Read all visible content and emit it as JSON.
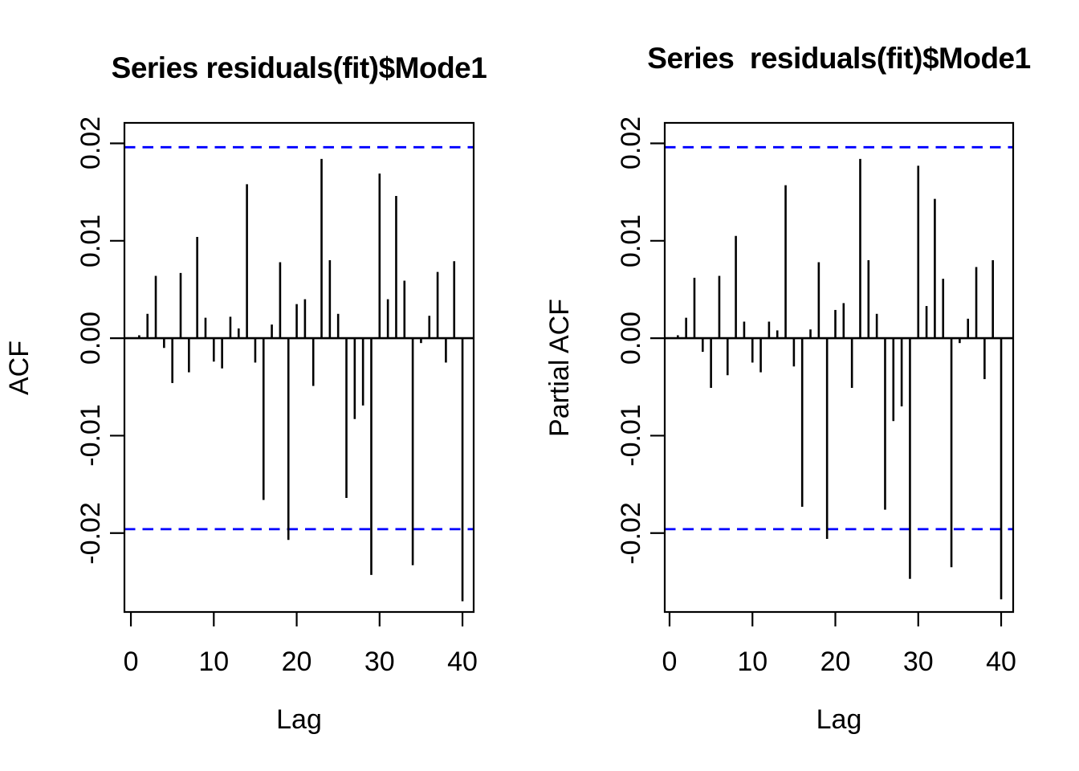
{
  "figure": {
    "background": "#ffffff",
    "text_color": "#000000"
  },
  "chart_data": [
    {
      "type": "bar",
      "subtype": "acf-lollipop",
      "title": "Series residuals(fit)$Mode1",
      "xlabel": "Lag",
      "ylabel": "ACF",
      "x_ticks": [
        0,
        10,
        20,
        30,
        40
      ],
      "x_tick_labels": [
        "0",
        "10",
        "20",
        "30",
        "40"
      ],
      "y_ticks": [
        0.02,
        0.01,
        0.0,
        -0.01,
        -0.02
      ],
      "y_tick_labels": [
        "0.02",
        "0.01",
        "0.00",
        "-0.01",
        "-0.02"
      ],
      "xlim": [
        -0.78,
        41.35
      ],
      "ylim": [
        -0.0281,
        0.0221
      ],
      "confidence_bound": 0.0196,
      "confidence_style": "dashed",
      "confidence_color": "#0000ff",
      "bar_color": "#000000",
      "grid": false,
      "lag_start": 1,
      "lags": [
        1,
        2,
        3,
        4,
        5,
        6,
        7,
        8,
        9,
        10,
        11,
        12,
        13,
        14,
        15,
        16,
        17,
        18,
        19,
        20,
        21,
        22,
        23,
        24,
        25,
        26,
        27,
        28,
        29,
        30,
        31,
        32,
        33,
        34,
        35,
        36,
        37,
        38,
        39,
        40
      ],
      "values": [
        0.0003,
        0.0025,
        0.0064,
        -0.001,
        -0.0046,
        0.0067,
        -0.0035,
        0.0104,
        0.0021,
        -0.0024,
        -0.0031,
        0.0022,
        0.001,
        0.0158,
        -0.0025,
        -0.0166,
        0.0014,
        0.0078,
        -0.0207,
        0.0035,
        0.004,
        -0.0049,
        0.0184,
        0.008,
        0.0025,
        -0.0164,
        -0.0083,
        -0.0069,
        -0.0243,
        0.0169,
        0.004,
        0.0146,
        0.0059,
        -0.0233,
        -0.0005,
        0.0023,
        0.0068,
        -0.0025,
        0.0079,
        -0.027
      ]
    },
    {
      "type": "bar",
      "subtype": "acf-lollipop",
      "title": "Series  residuals(fit)$Mode1",
      "xlabel": "Lag",
      "ylabel": "Partial ACF",
      "x_ticks": [
        0,
        10,
        20,
        30,
        40
      ],
      "x_tick_labels": [
        "0",
        "10",
        "20",
        "30",
        "40"
      ],
      "y_ticks": [
        0.02,
        0.01,
        0.0,
        -0.01,
        -0.02
      ],
      "y_tick_labels": [
        "0.02",
        "0.01",
        "0.00",
        "-0.01",
        "-0.02"
      ],
      "xlim": [
        -0.58,
        41.45
      ],
      "ylim": [
        -0.0281,
        0.0221
      ],
      "confidence_bound": 0.0196,
      "confidence_style": "dashed",
      "confidence_color": "#0000ff",
      "bar_color": "#000000",
      "grid": false,
      "lag_start": 1,
      "lags": [
        1,
        2,
        3,
        4,
        5,
        6,
        7,
        8,
        9,
        10,
        11,
        12,
        13,
        14,
        15,
        16,
        17,
        18,
        19,
        20,
        21,
        22,
        23,
        24,
        25,
        26,
        27,
        28,
        29,
        30,
        31,
        32,
        33,
        34,
        35,
        36,
        37,
        38,
        39,
        40
      ],
      "values": [
        0.0003,
        0.0021,
        0.0062,
        -0.0014,
        -0.0051,
        0.0064,
        -0.0038,
        0.0105,
        0.0017,
        -0.0025,
        -0.0035,
        0.0017,
        0.0008,
        0.0157,
        -0.0029,
        -0.0173,
        0.0009,
        0.0078,
        -0.0206,
        0.0029,
        0.0036,
        -0.0051,
        0.0184,
        0.008,
        0.0025,
        -0.0176,
        -0.0085,
        -0.007,
        -0.0247,
        0.0177,
        0.0033,
        0.0143,
        0.0061,
        -0.0235,
        -0.0005,
        0.002,
        0.0073,
        -0.0042,
        0.008,
        -0.0268
      ]
    }
  ]
}
